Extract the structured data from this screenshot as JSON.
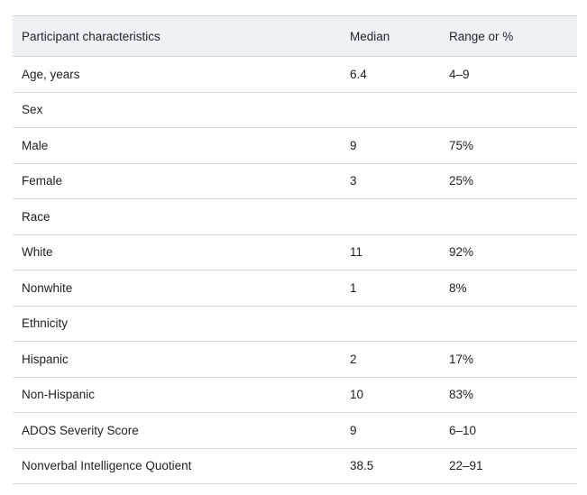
{
  "table": {
    "columns": [
      {
        "label": "Participant characteristics"
      },
      {
        "label": "Median"
      },
      {
        "label": "Range or %"
      }
    ],
    "rows": [
      {
        "label": "Age, years",
        "median": "6.4",
        "range": "4–9"
      },
      {
        "label": "Sex",
        "median": "",
        "range": ""
      },
      {
        "label": "Male",
        "median": "9",
        "range": "75%"
      },
      {
        "label": "Female",
        "median": "3",
        "range": "25%"
      },
      {
        "label": "Race",
        "median": "",
        "range": ""
      },
      {
        "label": "White",
        "median": "11",
        "range": "92%"
      },
      {
        "label": "Nonwhite",
        "median": "1",
        "range": "8%"
      },
      {
        "label": "Ethnicity",
        "median": "",
        "range": ""
      },
      {
        "label": "Hispanic",
        "median": "2",
        "range": "17%"
      },
      {
        "label": "Non-Hispanic",
        "median": "10",
        "range": "83%"
      },
      {
        "label": "ADOS Severity Score",
        "median": "9",
        "range": "6–10"
      },
      {
        "label": "Nonverbal Intelligence Quotient",
        "median": "38.5",
        "range": "22–91"
      }
    ],
    "colors": {
      "header_bg": "#eef1f6",
      "header_border": "#ccd3dc",
      "row_border": "#d7dbde",
      "text": "#202122"
    }
  },
  "chart_data": {
    "type": "table",
    "title": "",
    "columns": [
      "Participant characteristics",
      "Median",
      "Range or %"
    ],
    "rows": [
      [
        "Age, years",
        "6.4",
        "4–9"
      ],
      [
        "Sex",
        "",
        ""
      ],
      [
        "Male",
        "9",
        "75%"
      ],
      [
        "Female",
        "3",
        "25%"
      ],
      [
        "Race",
        "",
        ""
      ],
      [
        "White",
        "11",
        "92%"
      ],
      [
        "Nonwhite",
        "1",
        "8%"
      ],
      [
        "Ethnicity",
        "",
        ""
      ],
      [
        "Hispanic",
        "2",
        "17%"
      ],
      [
        "Non-Hispanic",
        "10",
        "83%"
      ],
      [
        "ADOS Severity Score",
        "9",
        "6–10"
      ],
      [
        "Nonverbal Intelligence Quotient",
        "38.5",
        "22–91"
      ]
    ]
  }
}
